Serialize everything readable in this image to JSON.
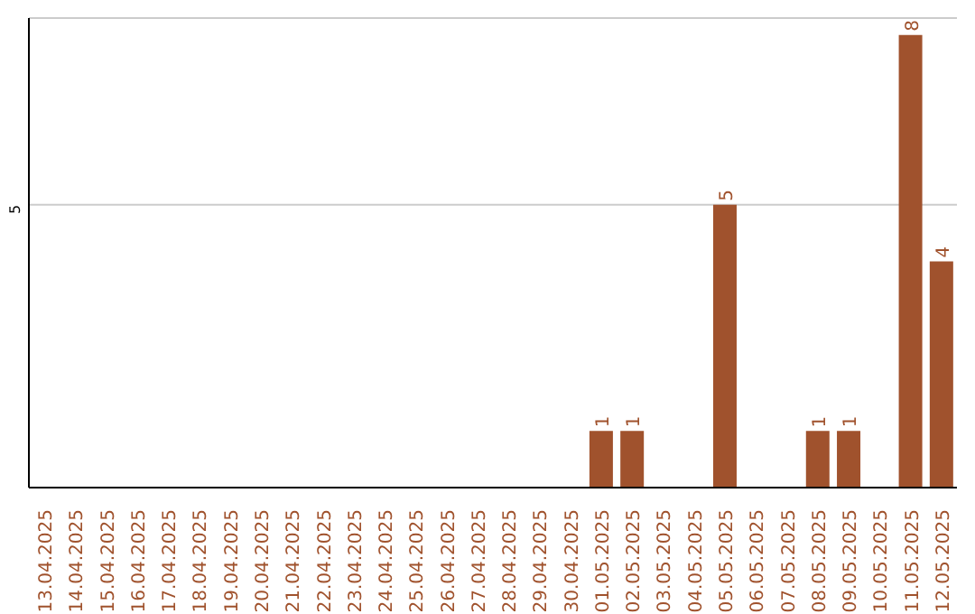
{
  "chart_data": {
    "type": "bar",
    "categories": [
      "13.04.2025",
      "14.04.2025",
      "15.04.2025",
      "16.04.2025",
      "17.04.2025",
      "18.04.2025",
      "19.04.2025",
      "20.04.2025",
      "21.04.2025",
      "22.04.2025",
      "23.04.2025",
      "24.04.2025",
      "25.04.2025",
      "26.04.2025",
      "27.04.2025",
      "28.04.2025",
      "29.04.2025",
      "30.04.2025",
      "01.05.2025",
      "02.05.2025",
      "03.05.2025",
      "04.05.2025",
      "05.05.2025",
      "06.05.2025",
      "07.05.2025",
      "08.05.2025",
      "09.05.2025",
      "10.05.2025",
      "11.05.2025",
      "12.05.2025"
    ],
    "values": [
      null,
      null,
      null,
      null,
      null,
      null,
      null,
      null,
      null,
      null,
      null,
      null,
      null,
      null,
      null,
      null,
      null,
      null,
      1,
      1,
      null,
      null,
      5,
      null,
      null,
      1,
      1,
      null,
      8,
      4
    ],
    "color": "#a0522d",
    "ylim": [
      0,
      8.3
    ],
    "yticks": [
      5
    ],
    "grid": "y",
    "data_labels": true
  }
}
